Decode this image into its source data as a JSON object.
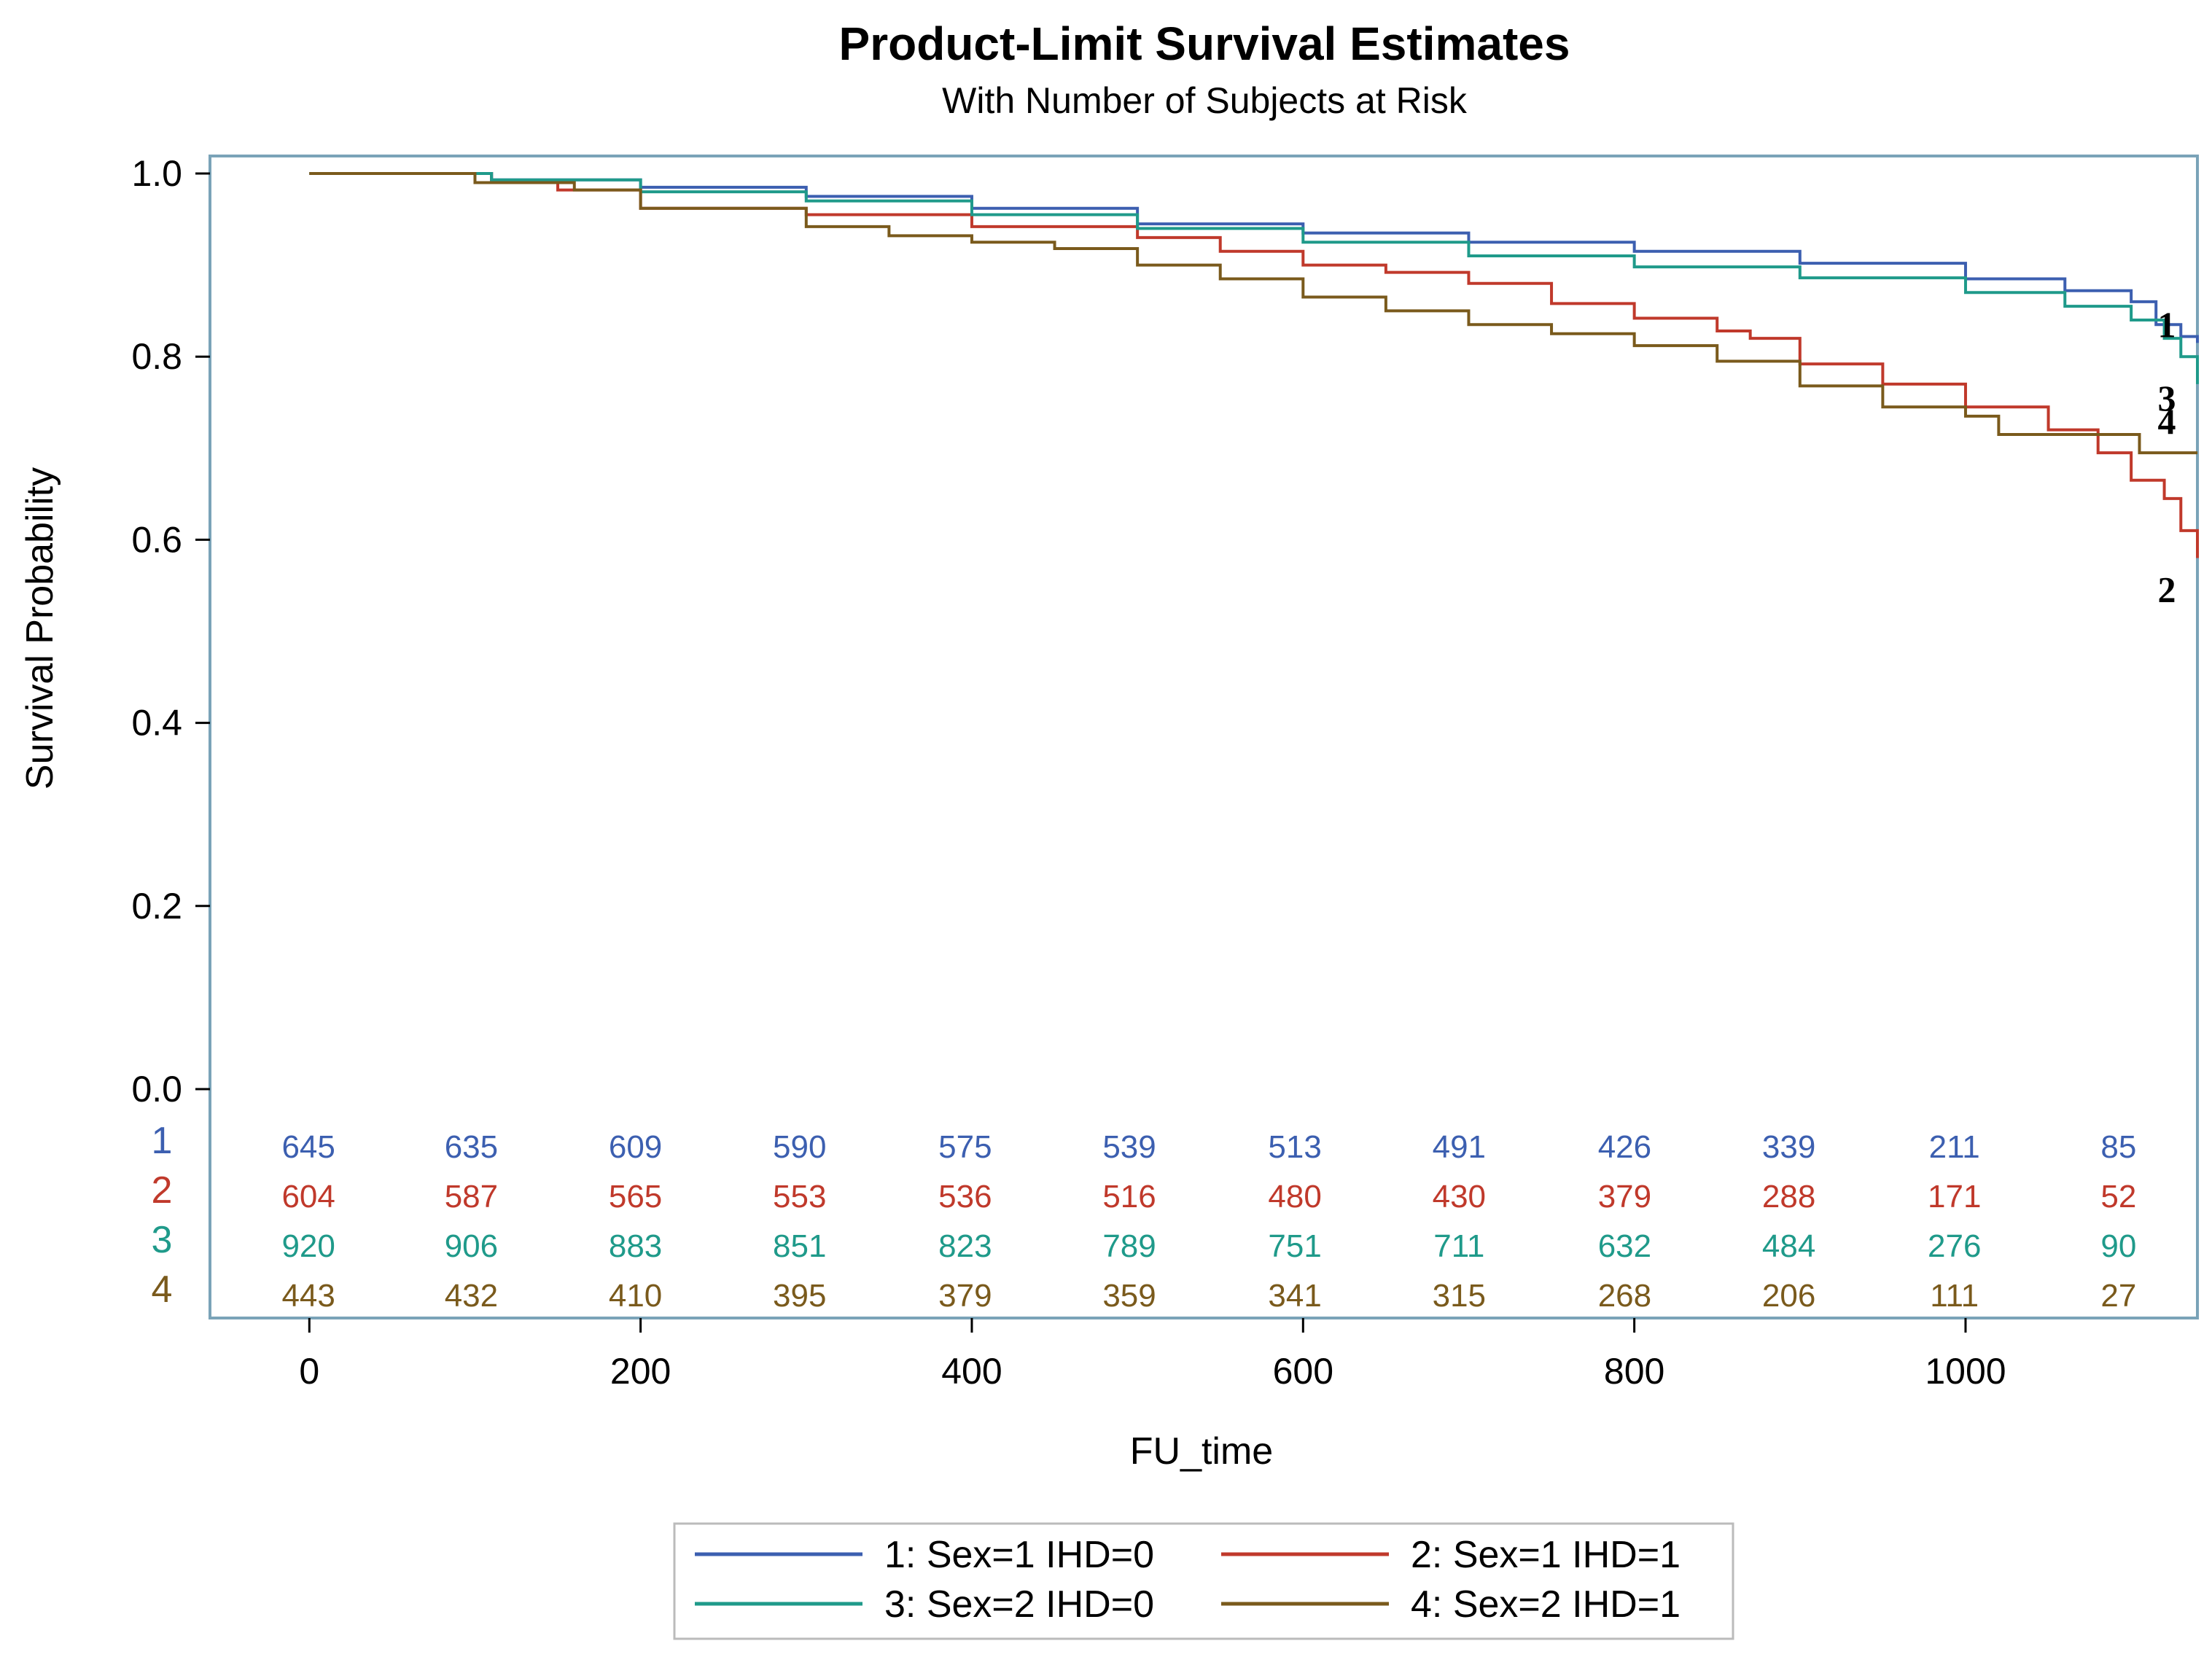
{
  "chart_data": {
    "type": "line",
    "step": true,
    "title": "Product-Limit Survival Estimates",
    "subtitle": "With Number of Subjects at Risk",
    "xlabel": "FU_time",
    "ylabel": "Survival Probability",
    "xlim": [
      -60,
      1140
    ],
    "ylim": [
      0.0,
      1.0
    ],
    "xticks": [
      0,
      200,
      400,
      600,
      800,
      1000
    ],
    "xtick_labels": [
      "0",
      "200",
      "400",
      "600",
      "800",
      "1000"
    ],
    "yticks": [
      0.0,
      0.2,
      0.4,
      0.6,
      0.8,
      1.0
    ],
    "ytick_labels": [
      "0.0",
      "0.2",
      "0.4",
      "0.6",
      "0.8",
      "1.0"
    ],
    "grid": false,
    "legend_position": "bottom",
    "series": [
      {
        "id": "1",
        "name": "1: Sex=1 IHD=0",
        "end_label": "1",
        "color": "#3c5fb0",
        "points": [
          [
            0,
            1.0
          ],
          [
            80,
            1.0
          ],
          [
            110,
            0.993
          ],
          [
            200,
            0.985
          ],
          [
            300,
            0.975
          ],
          [
            400,
            0.962
          ],
          [
            500,
            0.945
          ],
          [
            600,
            0.935
          ],
          [
            700,
            0.925
          ],
          [
            800,
            0.915
          ],
          [
            900,
            0.902
          ],
          [
            1000,
            0.885
          ],
          [
            1060,
            0.872
          ],
          [
            1100,
            0.86
          ],
          [
            1115,
            0.835
          ],
          [
            1130,
            0.822
          ],
          [
            1140,
            0.815
          ]
        ]
      },
      {
        "id": "2",
        "name": "2: Sex=1 IHD=1",
        "end_label": "2",
        "color": "#c0392b",
        "points": [
          [
            0,
            1.0
          ],
          [
            60,
            1.0
          ],
          [
            110,
            0.99
          ],
          [
            150,
            0.982
          ],
          [
            200,
            0.962
          ],
          [
            300,
            0.955
          ],
          [
            400,
            0.942
          ],
          [
            500,
            0.93
          ],
          [
            550,
            0.915
          ],
          [
            600,
            0.9
          ],
          [
            650,
            0.892
          ],
          [
            700,
            0.88
          ],
          [
            750,
            0.858
          ],
          [
            800,
            0.842
          ],
          [
            850,
            0.828
          ],
          [
            870,
            0.82
          ],
          [
            900,
            0.792
          ],
          [
            950,
            0.77
          ],
          [
            1000,
            0.745
          ],
          [
            1050,
            0.72
          ],
          [
            1080,
            0.695
          ],
          [
            1100,
            0.665
          ],
          [
            1120,
            0.645
          ],
          [
            1130,
            0.61
          ],
          [
            1140,
            0.58
          ]
        ]
      },
      {
        "id": "3",
        "name": "3: Sex=2 IHD=0",
        "end_label": "3",
        "color": "#1f9a8a",
        "points": [
          [
            0,
            1.0
          ],
          [
            80,
            1.0
          ],
          [
            110,
            0.993
          ],
          [
            200,
            0.98
          ],
          [
            300,
            0.97
          ],
          [
            400,
            0.955
          ],
          [
            500,
            0.94
          ],
          [
            600,
            0.925
          ],
          [
            700,
            0.91
          ],
          [
            800,
            0.898
          ],
          [
            900,
            0.886
          ],
          [
            1000,
            0.87
          ],
          [
            1060,
            0.855
          ],
          [
            1100,
            0.84
          ],
          [
            1120,
            0.82
          ],
          [
            1130,
            0.8
          ],
          [
            1140,
            0.77
          ]
        ]
      },
      {
        "id": "4",
        "name": "4: Sex=2 IHD=1",
        "end_label": "4",
        "color": "#7a5a1c",
        "points": [
          [
            0,
            1.0
          ],
          [
            100,
            0.99
          ],
          [
            160,
            0.982
          ],
          [
            200,
            0.962
          ],
          [
            300,
            0.942
          ],
          [
            350,
            0.932
          ],
          [
            400,
            0.925
          ],
          [
            450,
            0.918
          ],
          [
            500,
            0.9
          ],
          [
            550,
            0.885
          ],
          [
            600,
            0.865
          ],
          [
            650,
            0.85
          ],
          [
            700,
            0.835
          ],
          [
            750,
            0.825
          ],
          [
            800,
            0.812
          ],
          [
            850,
            0.795
          ],
          [
            900,
            0.768
          ],
          [
            950,
            0.745
          ],
          [
            1000,
            0.735
          ],
          [
            1020,
            0.715
          ],
          [
            1100,
            0.715
          ],
          [
            1105,
            0.695
          ],
          [
            1140,
            0.695
          ]
        ]
      }
    ],
    "at_risk": {
      "x": [
        0,
        100,
        200,
        300,
        400,
        500,
        600,
        700,
        800,
        900,
        1000,
        1100
      ],
      "groups": [
        {
          "label": "1",
          "color": "#3c5fb0",
          "values": [
            "645",
            "635",
            "609",
            "590",
            "575",
            "539",
            "513",
            "491",
            "426",
            "339",
            "211",
            "85"
          ]
        },
        {
          "label": "2",
          "color": "#c0392b",
          "values": [
            "604",
            "587",
            "565",
            "553",
            "536",
            "516",
            "480",
            "430",
            "379",
            "288",
            "171",
            "52"
          ]
        },
        {
          "label": "3",
          "color": "#1f9a8a",
          "values": [
            "920",
            "906",
            "883",
            "851",
            "823",
            "789",
            "751",
            "711",
            "632",
            "484",
            "276",
            "90"
          ]
        },
        {
          "label": "4",
          "color": "#7a5a1c",
          "values": [
            "443",
            "432",
            "410",
            "395",
            "379",
            "359",
            "341",
            "315",
            "268",
            "206",
            "111",
            "27"
          ]
        }
      ]
    },
    "frame_color": "#7aa3b8"
  }
}
